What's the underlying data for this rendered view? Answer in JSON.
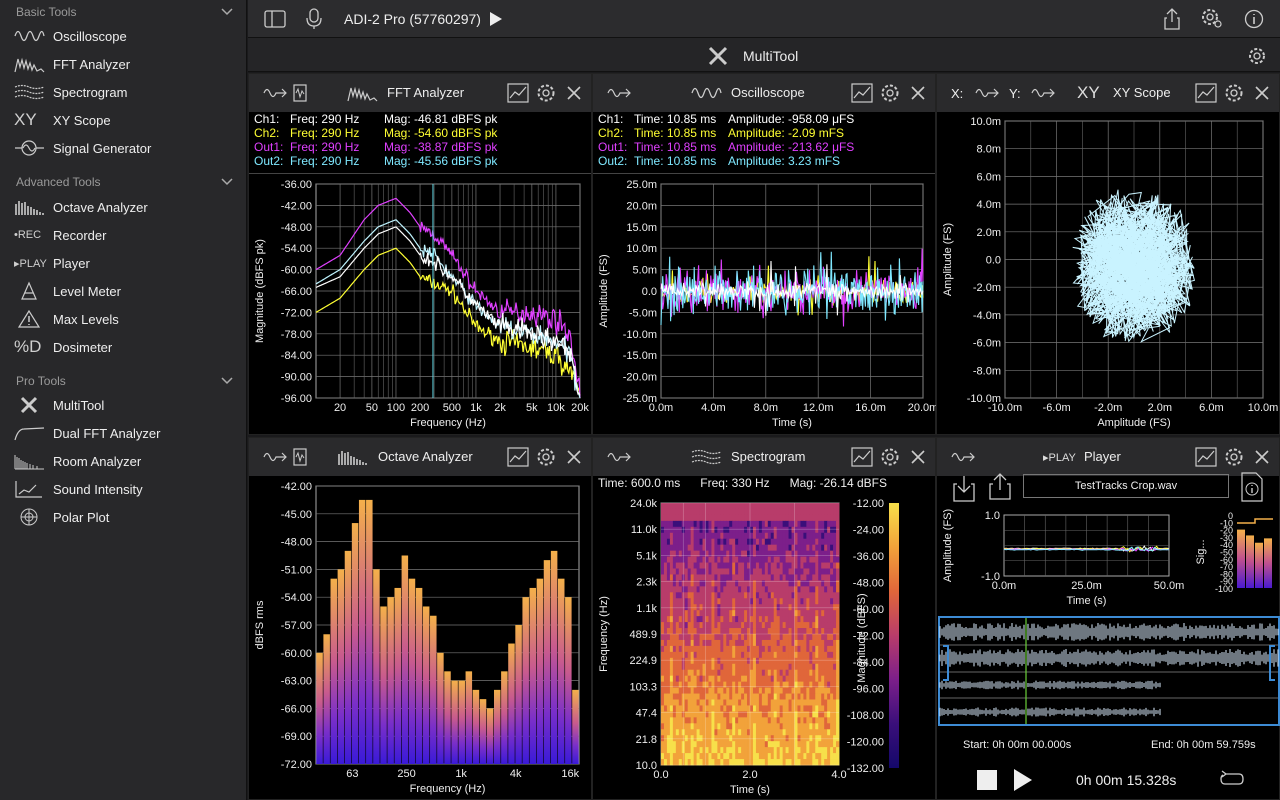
{
  "sidebar": {
    "sections": [
      {
        "label": "Basic Tools"
      },
      {
        "label": "Advanced Tools"
      },
      {
        "label": "Pro Tools"
      }
    ],
    "basic": [
      {
        "label": "Oscilloscope"
      },
      {
        "label": "FFT Analyzer"
      },
      {
        "label": "Spectrogram"
      },
      {
        "label": "XY Scope",
        "icon_text": "XY"
      },
      {
        "label": "Signal Generator"
      }
    ],
    "advanced": [
      {
        "label": "Octave Analyzer"
      },
      {
        "label": "Recorder",
        "icon_text": "•REC"
      },
      {
        "label": "Player",
        "icon_text": "▸PLAY"
      },
      {
        "label": "Level Meter"
      },
      {
        "label": "Max Levels"
      },
      {
        "label": "Dosimeter",
        "icon_text": "%D"
      }
    ],
    "pro": [
      {
        "label": "MultiTool"
      },
      {
        "label": "Dual FFT Analyzer"
      },
      {
        "label": "Room Analyzer"
      },
      {
        "label": "Sound Intensity"
      },
      {
        "label": "Polar Plot"
      }
    ]
  },
  "toolbar": {
    "device": "ADI-2 Pro (57760297)"
  },
  "title": "MultiTool",
  "fft": {
    "title": "FFT Analyzer",
    "readouts": [
      {
        "ch": "Ch1:",
        "freq": "Freq: 290 Hz",
        "mag": "Mag: -46.81 dBFS pk",
        "color": "#ffffff"
      },
      {
        "ch": "Ch2:",
        "freq": "Freq: 290 Hz",
        "mag": "Mag: -54.60 dBFS pk",
        "color": "#ffff33"
      },
      {
        "ch": "Out1:",
        "freq": "Freq: 290 Hz",
        "mag": "Mag: -38.87 dBFS pk",
        "color": "#e040ff"
      },
      {
        "ch": "Out2:",
        "freq": "Freq: 290 Hz",
        "mag": "Mag: -45.56 dBFS pk",
        "color": "#7fe8ff"
      }
    ],
    "ylabel": "Magnitude (dBFS pk)",
    "xlabel": "Frequency (Hz)",
    "yticks": [
      "-36.00",
      "-42.00",
      "-48.00",
      "-54.00",
      "-60.00",
      "-66.00",
      "-72.00",
      "-78.00",
      "-84.00",
      "-90.00",
      "-96.00"
    ],
    "xticks": [
      "20",
      "50",
      "100",
      "200",
      "500",
      "1k",
      "2k",
      "5k",
      "10k",
      "20k"
    ]
  },
  "osc": {
    "title": "Oscilloscope",
    "readouts": [
      {
        "ch": "Ch1:",
        "time": "Time: 10.85 ms",
        "amp": "Amplitude: -958.09 μFS",
        "color": "#ffffff"
      },
      {
        "ch": "Ch2:",
        "time": "Time: 10.85 ms",
        "amp": "Amplitude: -2.09 mFS",
        "color": "#ffff33"
      },
      {
        "ch": "Out1:",
        "time": "Time: 10.85 ms",
        "amp": "Amplitude: -213.62 μFS",
        "color": "#e040ff"
      },
      {
        "ch": "Out2:",
        "time": "Time: 10.85 ms",
        "amp": "Amplitude: 3.23 mFS",
        "color": "#7fe8ff"
      }
    ],
    "ylabel": "Amplitude (FS)",
    "xlabel": "Time (s)",
    "yticks": [
      "25.0m",
      "20.0m",
      "15.0m",
      "10.0m",
      "5.0m",
      "0.0",
      "-5.0m",
      "-10.0m",
      "-15.0m",
      "-20.0m",
      "-25.0m"
    ],
    "xticks": [
      "0.0m",
      "4.0m",
      "8.0m",
      "12.0m",
      "16.0m",
      "20.0m"
    ]
  },
  "xy": {
    "title": "XY Scope",
    "x_label": "X:",
    "y_label": "Y:",
    "icon_text": "XY",
    "ylabel": "Amplitude (FS)",
    "xlabel": "Amplitude (FS)",
    "yticks": [
      "10.0m",
      "8.0m",
      "6.0m",
      "4.0m",
      "2.0m",
      "0.0",
      "-2.0m",
      "-4.0m",
      "-6.0m",
      "-8.0m",
      "-10.0m"
    ],
    "xticks": [
      "-10.0m",
      "-6.0m",
      "-2.0m",
      "2.0m",
      "6.0m",
      "10.0m"
    ]
  },
  "octave": {
    "title": "Octave Analyzer",
    "ylabel": "dBFS rms",
    "xlabel": "Frequency (Hz)",
    "yticks": [
      "-42.00",
      "-45.00",
      "-48.00",
      "-51.00",
      "-54.00",
      "-57.00",
      "-60.00",
      "-63.00",
      "-66.00",
      "-69.00",
      "-72.00"
    ],
    "xticks": [
      "63",
      "250",
      "1k",
      "4k",
      "16k"
    ]
  },
  "spectro": {
    "title": "Spectrogram",
    "time": "Time: 600.0 ms",
    "freq": "Freq: 330 Hz",
    "mag": "Mag: -26.14 dBFS",
    "ylabel": "Frequency (Hz)",
    "xlabel": "Time (s)",
    "yticks": [
      "24.0k",
      "11.0k",
      "5.1k",
      "2.3k",
      "1.1k",
      "489.9",
      "224.9",
      "103.3",
      "47.4",
      "21.8",
      "10.0"
    ],
    "xticks": [
      "0.0",
      "2.0",
      "4.0"
    ],
    "cbar_label": "Magnitude (dBFS)",
    "cbar_ticks": [
      "-12.00",
      "-24.00",
      "-36.00",
      "-48.00",
      "-60.00",
      "-72.00",
      "-84.00",
      "-96.00",
      "-108.00",
      "-120.00",
      "-132.00"
    ]
  },
  "player": {
    "title": "Player",
    "icon_text": "▸PLAY",
    "filename": "TestTracks Crop.wav",
    "ylabel": "Amplitude (FS)",
    "xlabel": "Time (s)",
    "yticks": [
      "1.0",
      "-1.0"
    ],
    "xticks": [
      "0.0m",
      "25.0m",
      "50.0m"
    ],
    "meter_label": "Sig...",
    "meter_ticks": [
      "0",
      "-10",
      "-20",
      "-30",
      "-40",
      "-50",
      "-60",
      "-70",
      "-80",
      "-90",
      "-100"
    ],
    "start": "Start: 0h 00m 00.000s",
    "end": "End: 0h 00m 59.759s",
    "position": "0h 00m 15.328s"
  },
  "chart_data": [
    {
      "type": "line",
      "title": "FFT Analyzer",
      "xlabel": "Frequency (Hz)",
      "ylabel": "Magnitude (dBFS pk)",
      "xscale": "log",
      "xlim": [
        10,
        20000
      ],
      "ylim": [
        -96,
        -36
      ],
      "x": [
        10,
        20,
        40,
        60,
        100,
        150,
        200,
        300,
        500,
        1000,
        2000,
        5000,
        10000,
        15000,
        20000
      ],
      "series": [
        {
          "name": "Ch1",
          "values": [
            -65,
            -62,
            -54,
            -50,
            -48,
            -52,
            -56,
            -58,
            -62,
            -70,
            -76,
            -78,
            -80,
            -84,
            -96
          ]
        },
        {
          "name": "Ch2",
          "values": [
            -72,
            -68,
            -60,
            -56,
            -54,
            -58,
            -62,
            -64,
            -66,
            -76,
            -80,
            -82,
            -84,
            -88,
            -96
          ]
        },
        {
          "name": "Out1",
          "values": [
            -60,
            -56,
            -46,
            -42,
            -40,
            -44,
            -48,
            -50,
            -56,
            -66,
            -72,
            -72,
            -74,
            -78,
            -96
          ]
        },
        {
          "name": "Out2",
          "values": [
            -64,
            -60,
            -52,
            -48,
            -46,
            -50,
            -54,
            -56,
            -62,
            -70,
            -76,
            -78,
            -80,
            -84,
            -96
          ]
        }
      ]
    },
    {
      "type": "line",
      "title": "Oscilloscope",
      "xlabel": "Time (s)",
      "ylabel": "Amplitude (FS)",
      "xlim": [
        0,
        0.02
      ],
      "ylim": [
        -0.025,
        0.025
      ]
    },
    {
      "type": "scatter",
      "title": "XY Scope",
      "xlabel": "Amplitude (FS)",
      "ylabel": "Amplitude (FS)",
      "xlim": [
        -0.01,
        0.01
      ],
      "ylim": [
        -0.01,
        0.01
      ]
    },
    {
      "type": "bar",
      "title": "Octave Analyzer",
      "xlabel": "Frequency (Hz)",
      "ylabel": "dBFS rms",
      "ylim": [
        -72,
        -42
      ],
      "values": [
        -60,
        -58,
        -52,
        -51,
        -49,
        -46,
        -43.5,
        -43.5,
        -51,
        -55,
        -54,
        -53,
        -49.5,
        -52,
        -53,
        -55,
        -56,
        -60,
        -62,
        -63,
        -63,
        -62,
        -64,
        -65,
        -66,
        -64,
        -62,
        -59,
        -57,
        -54,
        -53,
        -52,
        -50,
        -49,
        -52,
        -54,
        -64
      ]
    },
    {
      "type": "heatmap",
      "title": "Spectrogram",
      "xlabel": "Time (s)",
      "ylabel": "Frequency (Hz)",
      "xlim": [
        0,
        4
      ],
      "clim": [
        -132,
        -12
      ]
    }
  ]
}
